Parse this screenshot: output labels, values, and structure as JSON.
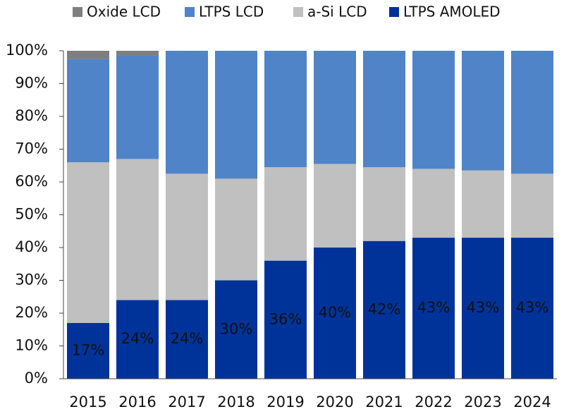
{
  "chart_data": {
    "type": "stacked_bar",
    "categories": [
      "2015",
      "2016",
      "2017",
      "2018",
      "2019",
      "2020",
      "2021",
      "2022",
      "2023",
      "2024"
    ],
    "series": [
      {
        "name": "Oxide LCD",
        "color": "#7f7f7f",
        "values": [
          2.5,
          1.5,
          0,
          0,
          0,
          0,
          0,
          0,
          0,
          0
        ]
      },
      {
        "name": "LTPS LCD",
        "color": "#4f84c9",
        "values": [
          31.5,
          31.5,
          37.5,
          39,
          35.5,
          34.5,
          35.5,
          36,
          36.5,
          37.5
        ]
      },
      {
        "name": "a-Si LCD",
        "color": "#c0c0c0",
        "values": [
          49,
          43,
          38.5,
          31,
          28.5,
          25.5,
          22.5,
          21,
          20.5,
          19.5
        ]
      },
      {
        "name": "LTPS AMOLED",
        "color": "#003399",
        "values": [
          17,
          24,
          24,
          30,
          36,
          40,
          42,
          43,
          43,
          43
        ],
        "value_labels": [
          "17%",
          "24%",
          "24%",
          "30%",
          "36%",
          "40%",
          "42%",
          "43%",
          "43%",
          "43%"
        ]
      }
    ],
    "ylim": [
      0,
      100
    ],
    "yticks": [
      {
        "value": 0,
        "label": "0%"
      },
      {
        "value": 10,
        "label": "10%"
      },
      {
        "value": 20,
        "label": "20%"
      },
      {
        "value": 30,
        "label": "30%"
      },
      {
        "value": 40,
        "label": "40%"
      },
      {
        "value": 50,
        "label": "50%"
      },
      {
        "value": 60,
        "label": "60%"
      },
      {
        "value": 70,
        "label": "70%"
      },
      {
        "value": 80,
        "label": "80%"
      },
      {
        "value": 90,
        "label": "90%"
      },
      {
        "value": 100,
        "label": "100%"
      }
    ]
  }
}
